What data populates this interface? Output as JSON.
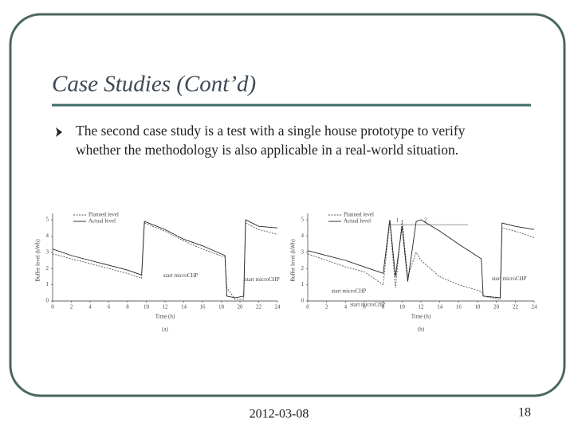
{
  "slide": {
    "title": "Case Studies (Cont’d)",
    "bullet": {
      "lines": [
        "The second case study is a test with a single house prototype to verify",
        "whether the methodology is also applicable in a real-world situation."
      ]
    },
    "footer": {
      "date": "2012-03-08",
      "page": "18"
    }
  },
  "chart_data": [
    {
      "type": "line",
      "caption": "(a)",
      "x_label": "Time (h)",
      "y_label": "Buffer level (kWh)",
      "xlim": [
        0,
        24
      ],
      "xticks": [
        0,
        2,
        4,
        6,
        8,
        10,
        12,
        14,
        16,
        18,
        20,
        22,
        24
      ],
      "ylim": [
        0,
        5
      ],
      "yticks": [
        0,
        1,
        2,
        3,
        4,
        5
      ],
      "legend": "top-left",
      "x": [
        0,
        2,
        4,
        6,
        8,
        9.5,
        9.8,
        12,
        14,
        16,
        18.4,
        18.6,
        19.5,
        20.4,
        20.6,
        22,
        24
      ],
      "series": [
        {
          "name": "Planned level",
          "color": "#555555",
          "line_style": "dashed",
          "values": [
            2.9,
            2.6,
            2.3,
            2.0,
            1.7,
            1.4,
            4.8,
            4.3,
            3.7,
            3.2,
            2.7,
            0.8,
            0.1,
            0.1,
            4.8,
            4.4,
            4.1
          ]
        },
        {
          "name": "Actual level",
          "color": "#222222",
          "line_style": "solid",
          "values": [
            3.2,
            2.8,
            2.5,
            2.2,
            1.9,
            1.6,
            4.9,
            4.4,
            3.8,
            3.4,
            2.8,
            0.3,
            0.2,
            0.3,
            5.0,
            4.6,
            4.5
          ]
        }
      ],
      "annotations": [
        "start microCHP",
        "start microCHP"
      ]
    },
    {
      "type": "line",
      "caption": "(b)",
      "x_label": "Time (h)",
      "y_label": "Buffer level (kWh)",
      "xlim": [
        0,
        24
      ],
      "xticks": [
        0,
        2,
        4,
        6,
        8,
        10,
        12,
        14,
        16,
        18,
        20,
        22,
        24
      ],
      "ylim": [
        0,
        5
      ],
      "yticks": [
        0,
        1,
        2,
        3,
        4,
        5
      ],
      "legend": "top-left",
      "x": [
        0,
        2,
        4,
        6,
        8,
        8.7,
        9.3,
        10,
        10.6,
        11.5,
        12,
        14,
        16,
        18.4,
        18.6,
        20.4,
        20.6,
        22,
        24
      ],
      "series": [
        {
          "name": "Planned level",
          "color": "#555555",
          "line_style": "dashed",
          "values": [
            2.9,
            2.5,
            2.1,
            1.8,
            1.0,
            4.9,
            0.8,
            5.0,
            1.5,
            3.0,
            2.5,
            1.5,
            1.0,
            0.6,
            0.3,
            0.1,
            4.5,
            4.3,
            3.9
          ]
        },
        {
          "name": "Actual level",
          "color": "#222222",
          "line_style": "solid",
          "values": [
            3.1,
            2.8,
            2.5,
            2.1,
            1.7,
            5.0,
            1.5,
            4.6,
            1.2,
            4.9,
            5.0,
            4.3,
            3.5,
            2.6,
            0.3,
            0.2,
            4.8,
            4.6,
            4.4
          ]
        }
      ],
      "annotations": [
        "1",
        "2",
        "start microCHP",
        "start microCHP",
        "start microCHP"
      ]
    }
  ]
}
